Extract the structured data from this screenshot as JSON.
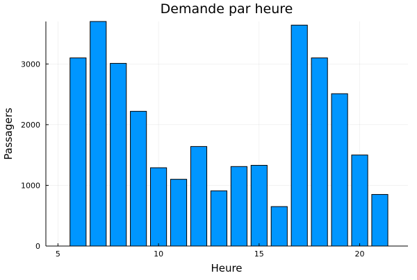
{
  "chart_data": {
    "type": "bar",
    "title": "Demande par heure",
    "xlabel": "Heure",
    "ylabel": "Passagers",
    "x": [
      6,
      7,
      8,
      9,
      10,
      11,
      12,
      13,
      14,
      15,
      16,
      17,
      18,
      19,
      20,
      21
    ],
    "values": [
      3100,
      3700,
      3010,
      2220,
      1290,
      1100,
      1640,
      910,
      1310,
      1330,
      650,
      3640,
      3100,
      2510,
      1500,
      850
    ],
    "xlim": [
      4.4,
      22.4
    ],
    "ylim": [
      0,
      3700
    ],
    "xticks": [
      5,
      10,
      15,
      20
    ],
    "yticks": [
      0,
      1000,
      2000,
      3000
    ],
    "grid": true,
    "legend": "none",
    "bar_color": "#0096FF"
  }
}
